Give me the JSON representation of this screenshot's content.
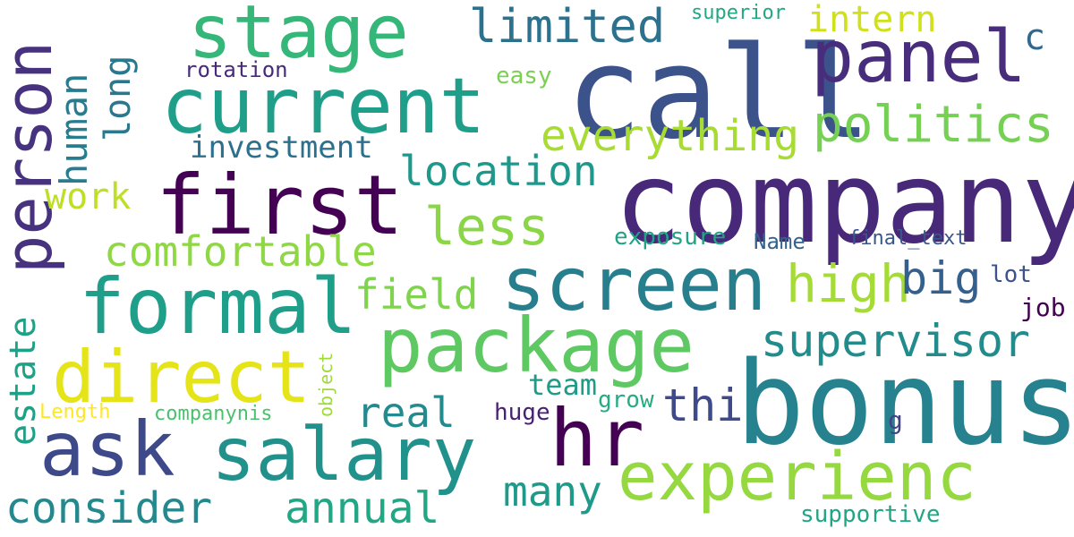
{
  "words": [
    {
      "id": "call",
      "text": "call",
      "color": "#3b528b"
    },
    {
      "id": "company",
      "text": "company",
      "color": "#482878"
    },
    {
      "id": "bonus",
      "text": "bonus",
      "color": "#26828e"
    },
    {
      "id": "current",
      "text": "current",
      "color": "#1f9e89"
    },
    {
      "id": "first",
      "text": "first",
      "color": "#440154"
    },
    {
      "id": "stage",
      "text": "stage",
      "color": "#35b779"
    },
    {
      "id": "panel",
      "text": "panel",
      "color": "#472d7b"
    },
    {
      "id": "screen",
      "text": "screen",
      "color": "#277f8e"
    },
    {
      "id": "formal",
      "text": "formal",
      "color": "#1f9e89"
    },
    {
      "id": "package",
      "text": "package",
      "color": "#5ec962"
    },
    {
      "id": "direct",
      "text": "direct",
      "color": "#e5e419"
    },
    {
      "id": "salary",
      "text": "salary",
      "color": "#21918c"
    },
    {
      "id": "hr",
      "text": "hr",
      "color": "#440154"
    },
    {
      "id": "experienc",
      "text": "experienc",
      "color": "#95d840"
    },
    {
      "id": "ask",
      "text": "ask",
      "color": "#3e4989"
    },
    {
      "id": "person",
      "text": "person",
      "color": "#46327e"
    },
    {
      "id": "human",
      "text": "human",
      "color": "#287c8e"
    },
    {
      "id": "long",
      "text": "long",
      "color": "#2a788e"
    },
    {
      "id": "estate",
      "text": "estate",
      "color": "#1fa187"
    },
    {
      "id": "object",
      "text": "object",
      "color": "#a0da39"
    },
    {
      "id": "limited",
      "text": "limited",
      "color": "#2c728e"
    },
    {
      "id": "superior",
      "text": "superior",
      "color": "#22a884"
    },
    {
      "id": "intern",
      "text": "intern",
      "color": "#d0e11c"
    },
    {
      "id": "c",
      "text": "c",
      "color": "#31688e"
    },
    {
      "id": "rotation",
      "text": "rotation",
      "color": "#472a7a"
    },
    {
      "id": "easy",
      "text": "easy",
      "color": "#7ad151"
    },
    {
      "id": "politics",
      "text": "politics",
      "color": "#75d054"
    },
    {
      "id": "everything",
      "text": "everything",
      "color": "#a8db34"
    },
    {
      "id": "investment",
      "text": "investment",
      "color": "#2d708e"
    },
    {
      "id": "location",
      "text": "location",
      "color": "#1f988b"
    },
    {
      "id": "work",
      "text": "work",
      "color": "#bddf26"
    },
    {
      "id": "less",
      "text": "less",
      "color": "#8bd646"
    },
    {
      "id": "comfortable",
      "text": "comfortable",
      "color": "#8fd744"
    },
    {
      "id": "exposure",
      "text": "exposure",
      "color": "#20a486"
    },
    {
      "id": "name",
      "text": "Name",
      "color": "#33638d"
    },
    {
      "id": "final_text",
      "text": "final_text",
      "color": "#39568c"
    },
    {
      "id": "high",
      "text": "high",
      "color": "#a5db36"
    },
    {
      "id": "big",
      "text": "big",
      "color": "#355f8d"
    },
    {
      "id": "lot",
      "text": "lot",
      "color": "#3b528b"
    },
    {
      "id": "job",
      "text": "job",
      "color": "#440154"
    },
    {
      "id": "field",
      "text": "field",
      "color": "#7fd34e"
    },
    {
      "id": "supervisor",
      "text": "supervisor",
      "color": "#228c8d"
    },
    {
      "id": "team",
      "text": "team",
      "color": "#1e9c89"
    },
    {
      "id": "grow",
      "text": "grow",
      "color": "#25ac82"
    },
    {
      "id": "real",
      "text": "real",
      "color": "#238a8d"
    },
    {
      "id": "thi",
      "text": "thi",
      "color": "#3e4a89"
    },
    {
      "id": "huge",
      "text": "huge",
      "color": "#482173"
    },
    {
      "id": "g",
      "text": "g",
      "color": "#414487"
    },
    {
      "id": "length",
      "text": "Length",
      "color": "#fde725"
    },
    {
      "id": "companynis",
      "text": "companynis",
      "color": "#4ac16d"
    },
    {
      "id": "many",
      "text": "many",
      "color": "#1f9a8a"
    },
    {
      "id": "consider",
      "text": "consider",
      "color": "#23898e"
    },
    {
      "id": "annual",
      "text": "annual",
      "color": "#22a785"
    },
    {
      "id": "supportive",
      "text": "supportive",
      "color": "#21a685"
    }
  ]
}
